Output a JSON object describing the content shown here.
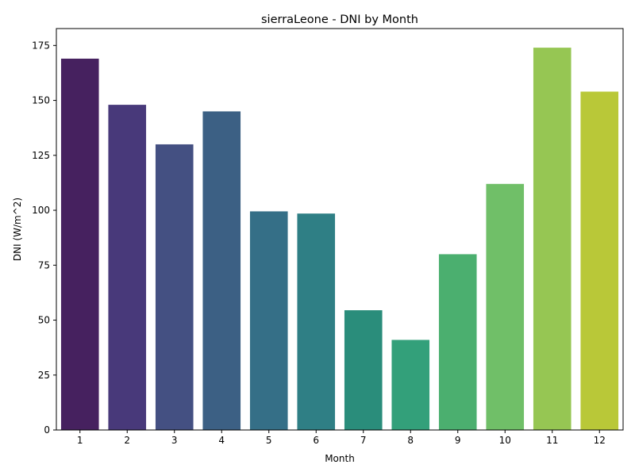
{
  "chart_data": {
    "type": "bar",
    "title": "sierraLeone - DNI by Month",
    "xlabel": "Month",
    "ylabel": "DNI (W/m^2)",
    "categories": [
      "1",
      "2",
      "3",
      "4",
      "5",
      "6",
      "7",
      "8",
      "9",
      "10",
      "11",
      "12"
    ],
    "values": [
      169,
      148,
      130,
      145,
      99.5,
      98.5,
      54.5,
      41,
      80,
      112,
      174,
      154
    ],
    "ylim": [
      0,
      182.7
    ],
    "yticks": [
      0,
      25,
      50,
      75,
      100,
      125,
      150,
      175
    ],
    "grid": false,
    "legend": "none",
    "colors": [
      "#46215f",
      "#48397a",
      "#445082",
      "#3c6084",
      "#356f87",
      "#2f7f85",
      "#2a8d7b",
      "#33a07a",
      "#4baf6f",
      "#70bf68",
      "#96c653",
      "#b9c838"
    ]
  }
}
